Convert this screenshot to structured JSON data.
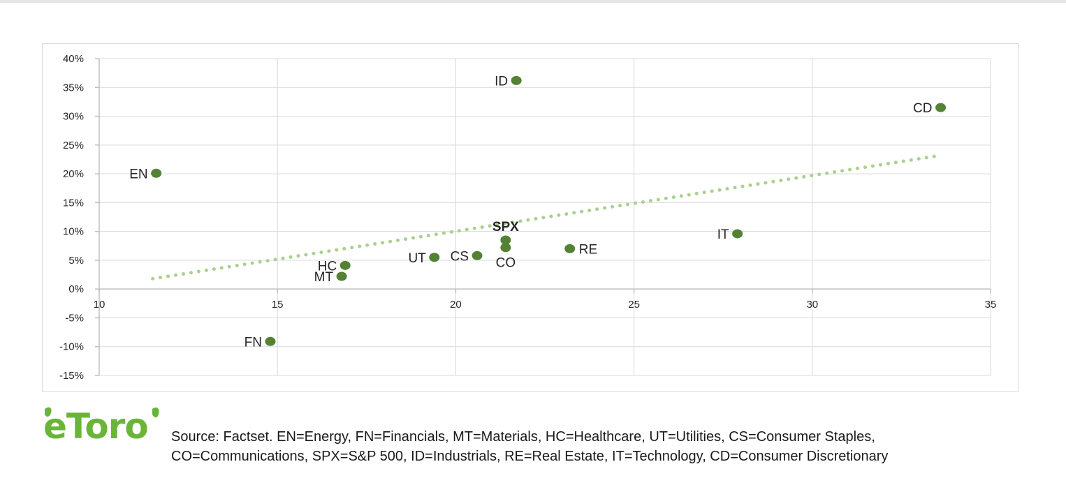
{
  "chart_data": {
    "type": "scatter",
    "title": "",
    "xlabel": "",
    "ylabel": "",
    "xlim": [
      10,
      35
    ],
    "ylim": [
      -15,
      40
    ],
    "x_ticks": [
      10,
      15,
      20,
      25,
      30,
      35
    ],
    "x_tick_labels": [
      "10",
      "15",
      "20",
      "25",
      "30",
      "35"
    ],
    "y_ticks": [
      40,
      35,
      30,
      25,
      20,
      15,
      10,
      5,
      0,
      -5,
      -10,
      -15
    ],
    "y_tick_labels": [
      "40%",
      "35%",
      "30%",
      "25%",
      "20%",
      "15%",
      "10%",
      "5%",
      "0%",
      "-5%",
      "-10%",
      "-15%"
    ],
    "grid": true,
    "legend": "none",
    "points": [
      {
        "label": "EN",
        "x": 11.6,
        "y": 20.1,
        "label_pos": "left"
      },
      {
        "label": "ID",
        "x": 21.7,
        "y": 36.2,
        "label_pos": "left"
      },
      {
        "label": "CD",
        "x": 33.6,
        "y": 31.5,
        "label_pos": "left"
      },
      {
        "label": "SPX",
        "x": 21.4,
        "y": 8.5,
        "label_pos": "above",
        "bold": true
      },
      {
        "label": "IT",
        "x": 27.9,
        "y": 9.6,
        "label_pos": "left"
      },
      {
        "label": "RE",
        "x": 23.2,
        "y": 7.0,
        "label_pos": "right"
      },
      {
        "label": "CO",
        "x": 21.4,
        "y": 7.2,
        "label_pos": "below"
      },
      {
        "label": "CS",
        "x": 20.6,
        "y": 5.8,
        "label_pos": "left"
      },
      {
        "label": "UT",
        "x": 19.4,
        "y": 5.5,
        "label_pos": "left"
      },
      {
        "label": "HC",
        "x": 16.9,
        "y": 4.1,
        "label_pos": "left"
      },
      {
        "label": "MT",
        "x": 16.8,
        "y": 2.2,
        "label_pos": "left"
      },
      {
        "label": "FN",
        "x": 14.8,
        "y": -9.1,
        "label_pos": "left"
      }
    ],
    "trendline": {
      "style": "dotted",
      "x": [
        11.5,
        33.6
      ],
      "y": [
        1.8,
        23.2
      ]
    },
    "colors": {
      "point": "#548235",
      "trendline": "#a9d18e",
      "grid": "#d9d9d9",
      "axis": "#bfbfbf",
      "text": "#262626"
    }
  },
  "logo": {
    "name": "etoro-logo",
    "text": "eToro",
    "color": "#6ab539"
  },
  "source": {
    "line1": "Source: Factset. EN=Energy, FN=Financials, MT=Materials, HC=Healthcare, UT=Utilities, CS=Consumer Staples,",
    "line2": "CO=Communications, SPX=S&P 500, ID=Industrials, RE=Real Estate, IT=Technology, CD=Consumer Discretionary"
  }
}
